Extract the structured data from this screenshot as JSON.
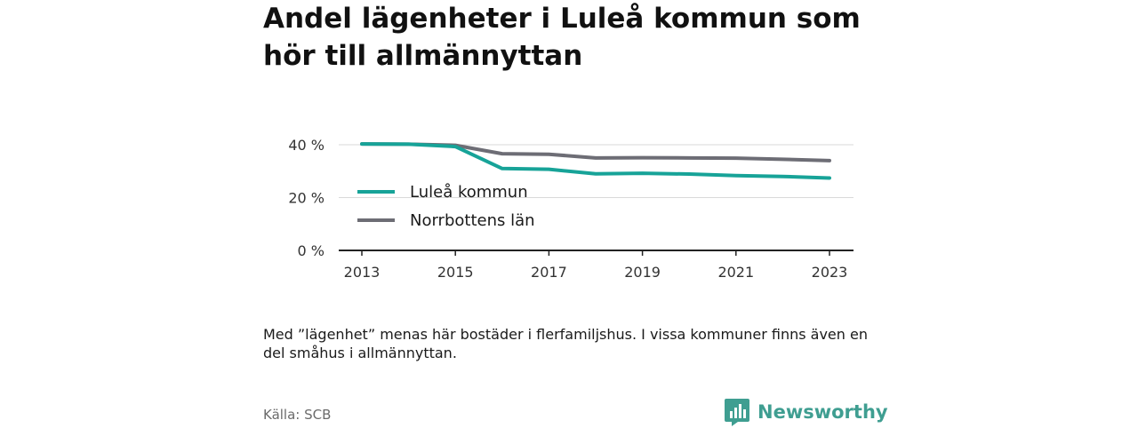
{
  "title": "Andel lägenheter i Luleå kommun som hör till allmännyttan",
  "note": "Med ”lägenhet” menas här bostäder i flerfamiljshus. I vissa kommuner finns även en del småhus i allmännyttan.",
  "source": "Källa: SCB",
  "brand": {
    "name": "Newsworthy",
    "color": "#3f9e91"
  },
  "chart_data": {
    "type": "line",
    "x": [
      2013,
      2014,
      2015,
      2016,
      2017,
      2018,
      2019,
      2020,
      2021,
      2022,
      2023
    ],
    "x_ticks": [
      "2013",
      "2015",
      "2017",
      "2019",
      "2021",
      "2023"
    ],
    "y_ticks": [
      "0 %",
      "20 %",
      "40 %"
    ],
    "ylim": [
      0,
      40
    ],
    "xlim": [
      2013,
      2023
    ],
    "grid": true,
    "legend_position": "inside-left",
    "series": [
      {
        "name": "Luleå kommun",
        "color": "#17a398",
        "values": [
          40.3,
          40.2,
          39.3,
          31.0,
          30.7,
          29.0,
          29.2,
          28.9,
          28.3,
          28.0,
          27.4
        ]
      },
      {
        "name": "Norrbottens län",
        "color": "#6d6d75",
        "values": [
          40.3,
          40.2,
          39.8,
          36.6,
          36.4,
          35.0,
          35.1,
          35.0,
          34.9,
          34.5,
          34.0
        ]
      }
    ]
  }
}
